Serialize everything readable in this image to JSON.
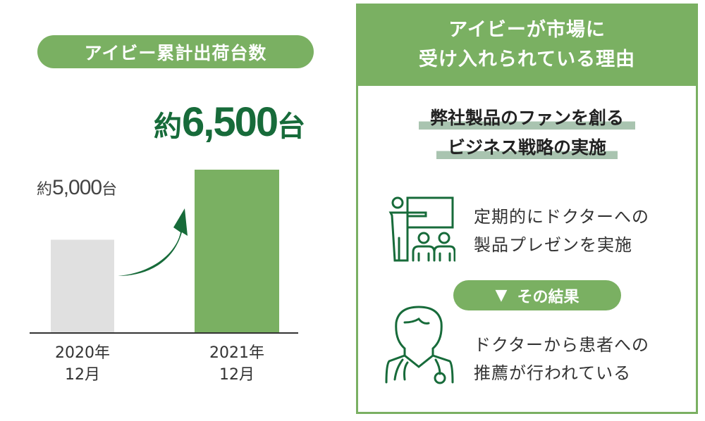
{
  "left": {
    "title": "アイビー累計出荷台数"
  },
  "chart_data": {
    "type": "bar",
    "title": "アイビー累計出荷台数",
    "categories": [
      "2020年\n12月",
      "2021年\n12月"
    ],
    "category_lines": [
      [
        "2020年",
        "12月"
      ],
      [
        "2021年",
        "12月"
      ]
    ],
    "values": [
      5000,
      6500
    ],
    "data_labels": [
      {
        "prefix": "約",
        "number": "5,000",
        "unit": "台"
      },
      {
        "prefix": "約",
        "number": "6,500",
        "unit": "台"
      }
    ],
    "colors": [
      "#e0e0e0",
      "#7ab062"
    ],
    "arrow_color": "#176b3a",
    "grid": false
  },
  "right": {
    "header_lines": [
      "アイビーが市場に",
      "受け入れられている理由"
    ],
    "subtitle_lines": [
      "弊社製品のファンを創る",
      "ビジネス戦略の実施"
    ],
    "item1_lines": [
      "定期的にドクターへの",
      "製品プレゼンを実施"
    ],
    "result_label": "その結果",
    "result_icon": "triangle-down-icon",
    "item2_lines": [
      "ドクターから患者への",
      "推薦が行われている"
    ],
    "icons": [
      "presentation-icon",
      "doctor-icon"
    ]
  },
  "colors": {
    "accent": "#7ab062",
    "dark": "#176b3a",
    "highlight": "#a9c4b0"
  }
}
